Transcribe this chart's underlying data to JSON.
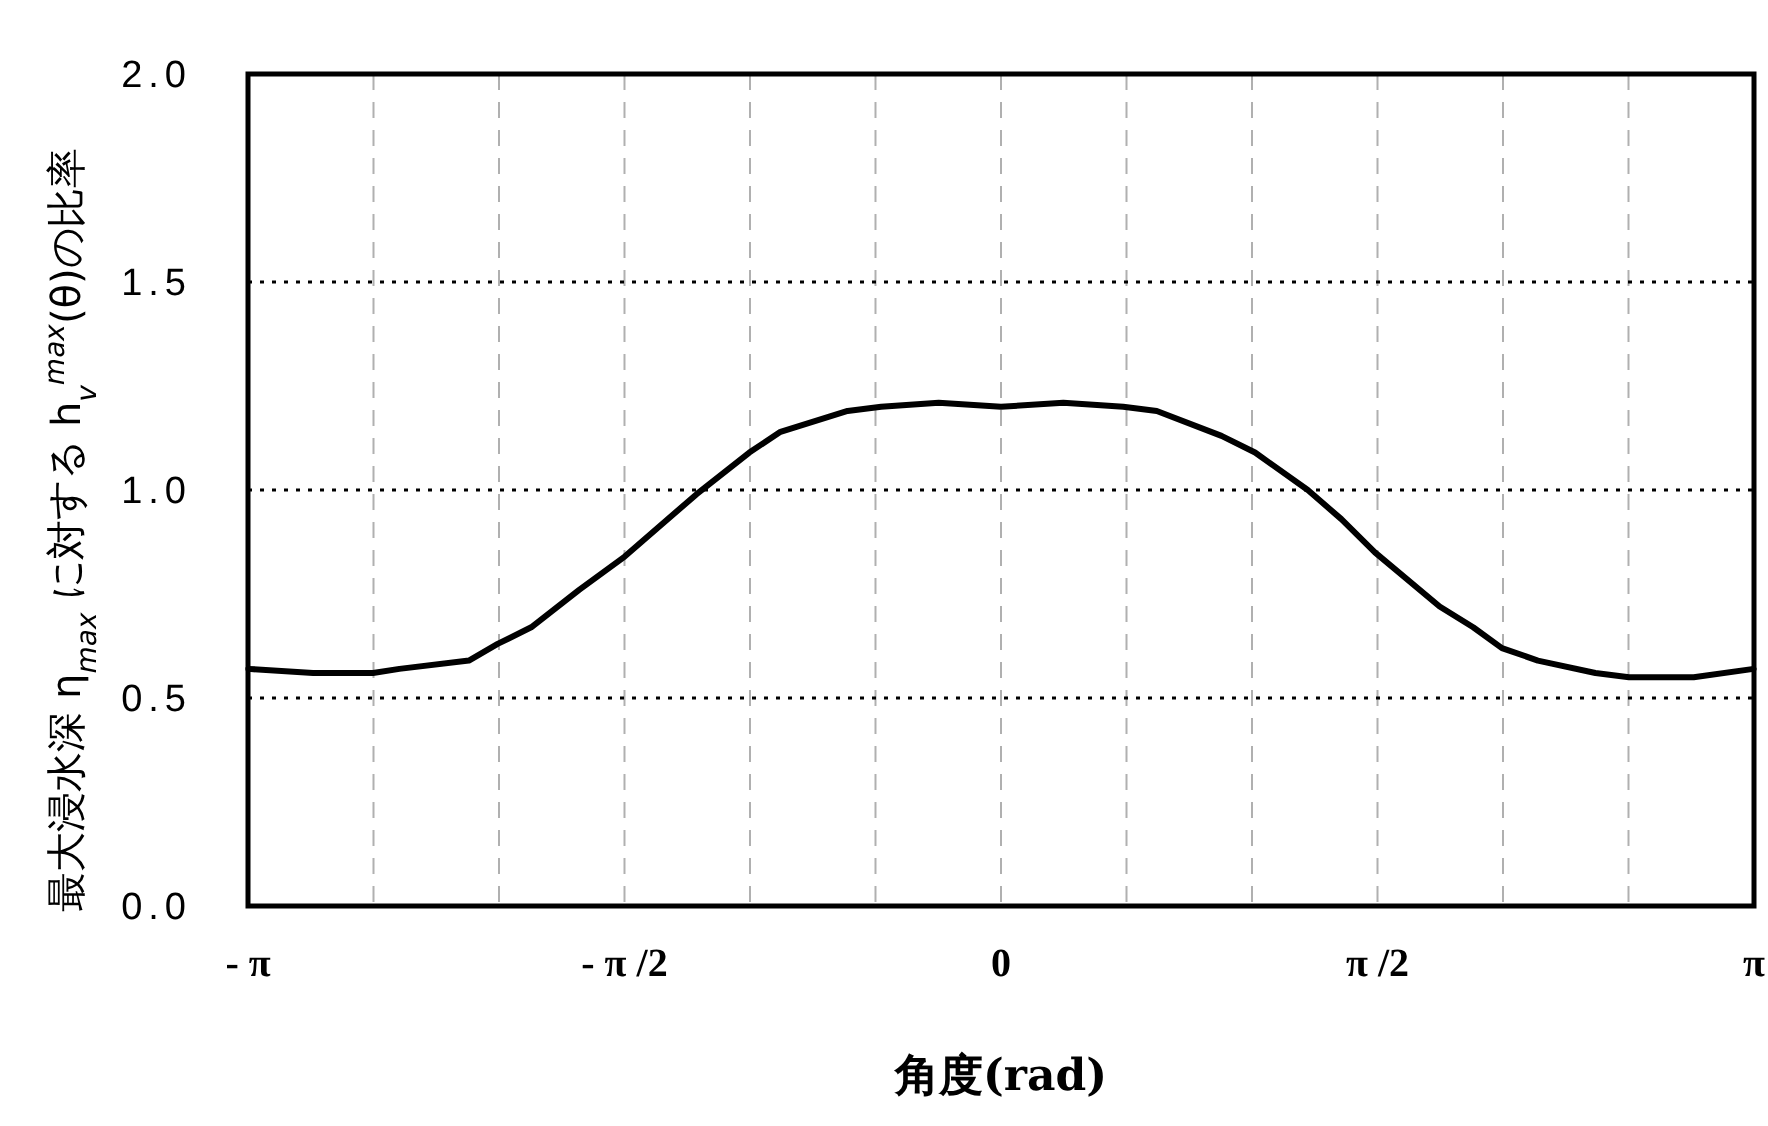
{
  "chart_data": {
    "type": "line",
    "xlabel": "角度(rad)",
    "ylabel": "最大浸水深 η$_{max}$ に対する h$_{v}$$^{max}$(θ)の比率",
    "x": [
      -3.14,
      -2.87,
      -2.62,
      -2.51,
      -2.22,
      -2.1,
      -1.96,
      -1.76,
      -1.57,
      -1.41,
      -1.27,
      -1.05,
      -0.92,
      -0.64,
      -0.5,
      -0.26,
      0,
      0.26,
      0.51,
      0.65,
      0.92,
      1.06,
      1.28,
      1.42,
      1.56,
      1.83,
      1.97,
      2.09,
      2.24,
      2.48,
      2.62,
      2.89,
      3.14
    ],
    "series": [
      {
        "color": "#000000",
        "values": [
          0.57,
          0.56,
          0.56,
          0.57,
          0.59,
          0.63,
          0.67,
          0.76,
          0.84,
          0.92,
          0.99,
          1.09,
          1.14,
          1.19,
          1.2,
          1.21,
          1.2,
          1.21,
          1.2,
          1.19,
          1.13,
          1.09,
          1.0,
          0.93,
          0.85,
          0.72,
          0.67,
          0.62,
          0.59,
          0.56,
          0.55,
          0.55,
          0.57
        ]
      }
    ],
    "xlim": [
      -3.14159,
      3.14159
    ],
    "xticks": [
      {
        "value": -3.14159,
        "label": "- π"
      },
      {
        "value": -2.61799,
        "label": null
      },
      {
        "value": -2.0944,
        "label": null
      },
      {
        "value": -1.5708,
        "label": "- π /2"
      },
      {
        "value": -1.0472,
        "label": null
      },
      {
        "value": -0.5236,
        "label": null
      },
      0,
      {
        "value": 0.5236,
        "label": null
      },
      {
        "value": 1.0472,
        "label": null
      },
      {
        "value": 1.5708,
        "label": "π /2"
      },
      {
        "value": 2.0944,
        "label": null
      },
      {
        "value": 2.61799,
        "label": null
      },
      {
        "value": 3.14159,
        "label": "π"
      }
    ],
    "ylim": [
      0,
      2
    ],
    "yticks": [
      {
        "value": 0,
        "label": "0.0"
      },
      {
        "value": 0.5,
        "label": "0.5"
      },
      {
        "value": 1,
        "label": "1.0"
      },
      {
        "value": 1.5,
        "label": "1.5"
      },
      {
        "value": 2,
        "label": "2.0"
      }
    ],
    "grid": true,
    "marker": "none",
    "line_style": "solid"
  }
}
